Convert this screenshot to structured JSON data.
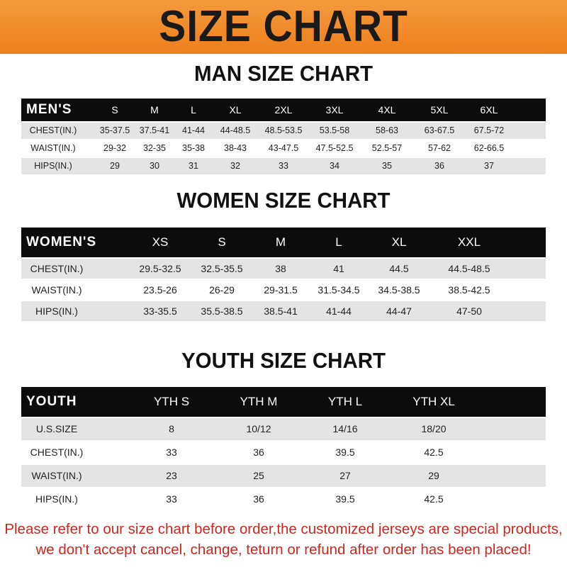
{
  "title": "SIZE CHART",
  "colors": {
    "banner": "#f08a2a",
    "header_bg": "#0c0c0c",
    "stripe": "#e4e4e4",
    "notice": "#c8281e"
  },
  "men": {
    "title": "MAN SIZE CHART",
    "header_label": "MEN'S",
    "sizes": [
      "S",
      "M",
      "L",
      "XL",
      "2XL",
      "3XL",
      "4XL",
      "5XL",
      "6XL"
    ],
    "rows": [
      {
        "label": "CHEST(IN.)",
        "values": [
          "35-37.5",
          "37.5-41",
          "41-44",
          "44-48.5",
          "48.5-53.5",
          "53.5-58",
          "58-63",
          "63-67.5",
          "67.5-72"
        ]
      },
      {
        "label": "WAIST(IN.)",
        "values": [
          "29-32",
          "32-35",
          "35-38",
          "38-43",
          "43-47.5",
          "47.5-52.5",
          "52.5-57",
          "57-62",
          "62-66.5"
        ]
      },
      {
        "label": "HIPS(IN.)",
        "values": [
          "29",
          "30",
          "31",
          "32",
          "33",
          "34",
          "35",
          "36",
          "37"
        ]
      }
    ]
  },
  "women": {
    "title": "WOMEN SIZE CHART",
    "header_label": "WOMEN'S",
    "sizes": [
      "XS",
      "S",
      "M",
      "L",
      "XL",
      "XXL"
    ],
    "rows": [
      {
        "label": "CHEST(IN.)",
        "values": [
          "29.5-32.5",
          "32.5-35.5",
          "38",
          "41",
          "44.5",
          "44.5-48.5"
        ]
      },
      {
        "label": "WAIST(IN.)",
        "values": [
          "23.5-26",
          "26-29",
          "29-31.5",
          "31.5-34.5",
          "34.5-38.5",
          "38.5-42.5"
        ]
      },
      {
        "label": "HIPS(IN.)",
        "values": [
          "33-35.5",
          "35.5-38.5",
          "38.5-41",
          "41-44",
          "44-47",
          "47-50"
        ]
      }
    ]
  },
  "youth": {
    "title": "YOUTH SIZE CHART",
    "header_label": "YOUTH",
    "sizes": [
      "YTH S",
      "YTH M",
      "YTH L",
      "YTH XL"
    ],
    "rows": [
      {
        "label": "U.S.SIZE",
        "values": [
          "8",
          "10/12",
          "14/16",
          "18/20"
        ]
      },
      {
        "label": "CHEST(IN.)",
        "values": [
          "33",
          "36",
          "39.5",
          "42.5"
        ]
      },
      {
        "label": "WAIST(IN.)",
        "values": [
          "23",
          "25",
          "27",
          "29"
        ]
      },
      {
        "label": "HIPS(IN.)",
        "values": [
          "33",
          "36",
          "39.5",
          "42.5"
        ]
      }
    ]
  },
  "notice": {
    "line1": "Please refer to our size chart before order,the customized jerseys are special products,",
    "line2": "we don't accept cancel, change, teturn or refund after order has been placed!"
  }
}
